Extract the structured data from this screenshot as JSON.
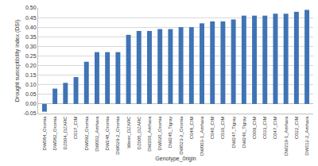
{
  "chart_data": {
    "type": "bar",
    "x_label": "Genotype_0rigin",
    "y_label": "Drought susceptibility index (DSI)",
    "categories": [
      "DW084_Oromia",
      "DW082_Oromia",
      "DZ004_DZARC",
      "C037_CIM",
      "DW092_Oromia",
      "DW002_Amhara",
      "DW248_Oromia",
      "DW029-2_Oromia",
      "Werer_DZARC",
      "DZ005_DZARC",
      "DW206_Amhara",
      "DW020_Oromia",
      "DW245_Tigray",
      "DW023-2_Oromia",
      "C048_CIM",
      "DW003-1_Amhara",
      "C040_CIM",
      "C036_CIM",
      "DW247_Tigray",
      "DW246_Tigray",
      "C009_CIM",
      "C033_CIM",
      "C047_CIM",
      "DW219-1_Amhara",
      "C022_CIM",
      "DW112-2_Amhara"
    ],
    "values": [
      -0.04,
      0.08,
      0.11,
      0.14,
      0.22,
      0.27,
      0.27,
      0.27,
      0.36,
      0.38,
      0.38,
      0.39,
      0.39,
      0.4,
      0.4,
      0.42,
      0.43,
      0.43,
      0.44,
      0.46,
      0.46,
      0.46,
      0.47,
      0.47,
      0.48,
      0.49
    ],
    "color": "#3f74b5",
    "ylim": [
      -0.05,
      0.5
    ],
    "yticks": [
      {
        "value": -0.05,
        "label": "-0.05"
      },
      {
        "value": 0,
        "label": "0.00"
      },
      {
        "value": 0.05,
        "label": "0.05"
      },
      {
        "value": 0.1,
        "label": "0.10"
      },
      {
        "value": 0.15,
        "label": "0.15"
      },
      {
        "value": 0.2,
        "label": "0.20"
      },
      {
        "value": 0.25,
        "label": "0.25"
      },
      {
        "value": 0.3,
        "label": "0.30"
      },
      {
        "value": 0.35,
        "label": "0.35"
      },
      {
        "value": 0.4,
        "label": "0.40"
      },
      {
        "value": 0.45,
        "label": "0.45"
      },
      {
        "value": 0.5,
        "label": "0.50"
      }
    ],
    "grid": true
  }
}
